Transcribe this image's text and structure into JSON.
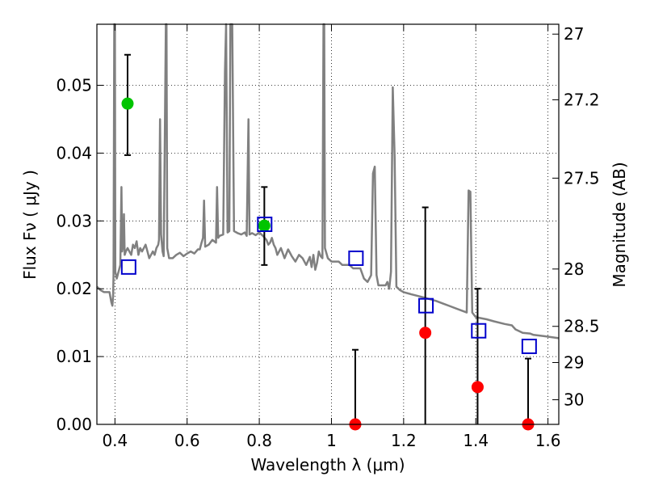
{
  "chart_data": {
    "type": "scatter",
    "title": "",
    "xlabel": "Wavelength  λ (μm)",
    "ylabel": "Flux  Fν  ( μJy )",
    "ylabel_right": "Magnitude (AB)",
    "xlim": [
      0.35,
      1.63
    ],
    "ylim": [
      0.0,
      0.059
    ],
    "grid": true,
    "x_ticks": [
      {
        "value": 0.4,
        "label": "0.4"
      },
      {
        "value": 0.6,
        "label": "0.6"
      },
      {
        "value": 0.8,
        "label": "0.8"
      },
      {
        "value": 1.0,
        "label": "1"
      },
      {
        "value": 1.2,
        "label": "1.2"
      },
      {
        "value": 1.4,
        "label": "1.4"
      },
      {
        "value": 1.6,
        "label": "1.6"
      }
    ],
    "y_ticks": [
      {
        "value": 0.0,
        "label": "0.00"
      },
      {
        "value": 0.01,
        "label": "0.01"
      },
      {
        "value": 0.02,
        "label": "0.02"
      },
      {
        "value": 0.03,
        "label": "0.03"
      },
      {
        "value": 0.04,
        "label": "0.04"
      },
      {
        "value": 0.05,
        "label": "0.05"
      }
    ],
    "right_ticks": [
      {
        "mag": 27,
        "label": "27"
      },
      {
        "mag": 27.2,
        "label": "27.2"
      },
      {
        "mag": 27.5,
        "label": "27.5"
      },
      {
        "mag": 28,
        "label": "28"
      },
      {
        "mag": 28.5,
        "label": "28.5"
      },
      {
        "mag": 29,
        "label": "29"
      },
      {
        "mag": 30,
        "label": "30"
      }
    ],
    "series": [
      {
        "role": "model",
        "color": "#808080",
        "points": [
          [
            0.35,
            0.0203
          ],
          [
            0.36,
            0.0198
          ],
          [
            0.37,
            0.0195
          ],
          [
            0.385,
            0.0195
          ],
          [
            0.39,
            0.018
          ],
          [
            0.393,
            0.0175
          ],
          [
            0.395,
            0.019
          ],
          [
            0.396,
            0.022
          ],
          [
            0.398,
            0.059
          ],
          [
            0.4,
            0.059
          ],
          [
            0.401,
            0.0225
          ],
          [
            0.405,
            0.0215
          ],
          [
            0.41,
            0.0225
          ],
          [
            0.415,
            0.0235
          ],
          [
            0.418,
            0.035
          ],
          [
            0.42,
            0.0255
          ],
          [
            0.423,
            0.0265
          ],
          [
            0.425,
            0.031
          ],
          [
            0.427,
            0.025
          ],
          [
            0.43,
            0.0255
          ],
          [
            0.435,
            0.026
          ],
          [
            0.44,
            0.0255
          ],
          [
            0.445,
            0.025
          ],
          [
            0.45,
            0.0265
          ],
          [
            0.455,
            0.026
          ],
          [
            0.46,
            0.027
          ],
          [
            0.465,
            0.025
          ],
          [
            0.47,
            0.026
          ],
          [
            0.475,
            0.0255
          ],
          [
            0.48,
            0.026
          ],
          [
            0.485,
            0.0265
          ],
          [
            0.49,
            0.0255
          ],
          [
            0.495,
            0.0245
          ],
          [
            0.5,
            0.025
          ],
          [
            0.505,
            0.0255
          ],
          [
            0.51,
            0.025
          ],
          [
            0.515,
            0.026
          ],
          [
            0.52,
            0.0265
          ],
          [
            0.522,
            0.0272
          ],
          [
            0.525,
            0.045
          ],
          [
            0.528,
            0.028
          ],
          [
            0.532,
            0.0255
          ],
          [
            0.535,
            0.0248
          ],
          [
            0.538,
            0.041
          ],
          [
            0.541,
            0.059
          ],
          [
            0.543,
            0.059
          ],
          [
            0.545,
            0.026
          ],
          [
            0.55,
            0.0245
          ],
          [
            0.56,
            0.0245
          ],
          [
            0.57,
            0.025
          ],
          [
            0.58,
            0.0253
          ],
          [
            0.59,
            0.0248
          ],
          [
            0.6,
            0.0252
          ],
          [
            0.61,
            0.0255
          ],
          [
            0.62,
            0.0252
          ],
          [
            0.63,
            0.0258
          ],
          [
            0.635,
            0.0258
          ],
          [
            0.64,
            0.0268
          ],
          [
            0.644,
            0.0275
          ],
          [
            0.647,
            0.033
          ],
          [
            0.65,
            0.0262
          ],
          [
            0.66,
            0.0265
          ],
          [
            0.67,
            0.0272
          ],
          [
            0.68,
            0.0268
          ],
          [
            0.683,
            0.035
          ],
          [
            0.686,
            0.0275
          ],
          [
            0.69,
            0.0278
          ],
          [
            0.7,
            0.028
          ],
          [
            0.705,
            0.052
          ],
          [
            0.708,
            0.059
          ],
          [
            0.712,
            0.0283
          ],
          [
            0.717,
            0.0285
          ],
          [
            0.72,
            0.059
          ],
          [
            0.725,
            0.059
          ],
          [
            0.73,
            0.0285
          ],
          [
            0.74,
            0.0282
          ],
          [
            0.75,
            0.028
          ],
          [
            0.76,
            0.0283
          ],
          [
            0.765,
            0.0278
          ],
          [
            0.77,
            0.045
          ],
          [
            0.773,
            0.028
          ],
          [
            0.78,
            0.0282
          ],
          [
            0.79,
            0.0279
          ],
          [
            0.8,
            0.0283
          ],
          [
            0.81,
            0.0278
          ],
          [
            0.82,
            0.0272
          ],
          [
            0.825,
            0.0265
          ],
          [
            0.83,
            0.0268
          ],
          [
            0.835,
            0.0275
          ],
          [
            0.84,
            0.0265
          ],
          [
            0.845,
            0.026
          ],
          [
            0.85,
            0.025
          ],
          [
            0.86,
            0.026
          ],
          [
            0.87,
            0.0245
          ],
          [
            0.88,
            0.0258
          ],
          [
            0.89,
            0.0248
          ],
          [
            0.9,
            0.024
          ],
          [
            0.91,
            0.025
          ],
          [
            0.92,
            0.0245
          ],
          [
            0.93,
            0.0235
          ],
          [
            0.94,
            0.0247
          ],
          [
            0.945,
            0.0232
          ],
          [
            0.95,
            0.025
          ],
          [
            0.955,
            0.0228
          ],
          [
            0.96,
            0.0238
          ],
          [
            0.965,
            0.0255
          ],
          [
            0.97,
            0.0248
          ],
          [
            0.975,
            0.0245
          ],
          [
            0.978,
            0.059
          ],
          [
            0.98,
            0.059
          ],
          [
            0.982,
            0.026
          ],
          [
            0.99,
            0.0245
          ],
          [
            1.0,
            0.024
          ],
          [
            1.02,
            0.024
          ],
          [
            1.03,
            0.0235
          ],
          [
            1.05,
            0.0235
          ],
          [
            1.06,
            0.023
          ],
          [
            1.08,
            0.023
          ],
          [
            1.09,
            0.0215
          ],
          [
            1.1,
            0.021
          ],
          [
            1.11,
            0.022
          ],
          [
            1.115,
            0.037
          ],
          [
            1.12,
            0.038
          ],
          [
            1.125,
            0.022
          ],
          [
            1.13,
            0.0205
          ],
          [
            1.15,
            0.0205
          ],
          [
            1.155,
            0.021
          ],
          [
            1.16,
            0.02
          ],
          [
            1.165,
            0.0225
          ],
          [
            1.17,
            0.0497
          ],
          [
            1.175,
            0.0395
          ],
          [
            1.18,
            0.0203
          ],
          [
            1.19,
            0.0198
          ],
          [
            1.2,
            0.0195
          ],
          [
            1.22,
            0.0192
          ],
          [
            1.25,
            0.0188
          ],
          [
            1.27,
            0.0185
          ],
          [
            1.29,
            0.0182
          ],
          [
            1.31,
            0.0178
          ],
          [
            1.33,
            0.0174
          ],
          [
            1.36,
            0.0168
          ],
          [
            1.375,
            0.0165
          ],
          [
            1.38,
            0.0345
          ],
          [
            1.385,
            0.0343
          ],
          [
            1.39,
            0.0165
          ],
          [
            1.4,
            0.0158
          ],
          [
            1.43,
            0.0155
          ],
          [
            1.45,
            0.0152
          ],
          [
            1.48,
            0.0148
          ],
          [
            1.5,
            0.0146
          ],
          [
            1.51,
            0.014
          ],
          [
            1.53,
            0.0135
          ],
          [
            1.55,
            0.0134
          ],
          [
            1.56,
            0.0132
          ],
          [
            1.59,
            0.013
          ],
          [
            1.63,
            0.0127
          ]
        ]
      }
    ],
    "detections": [
      {
        "x": 0.435,
        "y": 0.0473,
        "err_low": 0.0397,
        "err_high": 0.0545,
        "color": "#00c400"
      },
      {
        "x": 0.814,
        "y": 0.0293,
        "err_low": 0.0235,
        "err_high": 0.035,
        "color": "#00c400"
      },
      {
        "x": 1.066,
        "y": 0.0,
        "err_low": 0.0,
        "err_high": 0.011,
        "color": "#ff0000"
      },
      {
        "x": 1.26,
        "y": 0.0135,
        "err_low": 0.0,
        "err_high": 0.032,
        "color": "#ff0000"
      },
      {
        "x": 1.405,
        "y": 0.0055,
        "err_low": 0.0,
        "err_high": 0.02,
        "color": "#ff0000"
      },
      {
        "x": 1.545,
        "y": 0.0,
        "err_low": 0.0,
        "err_high": 0.0097,
        "color": "#ff0000"
      }
    ],
    "model_photometry": [
      {
        "x": 0.438,
        "y": 0.0232
      },
      {
        "x": 0.815,
        "y": 0.0295
      },
      {
        "x": 1.068,
        "y": 0.0245
      },
      {
        "x": 1.262,
        "y": 0.0175
      },
      {
        "x": 1.408,
        "y": 0.0138
      },
      {
        "x": 1.548,
        "y": 0.0115
      }
    ],
    "model_photometry_color": "#0000cc"
  }
}
